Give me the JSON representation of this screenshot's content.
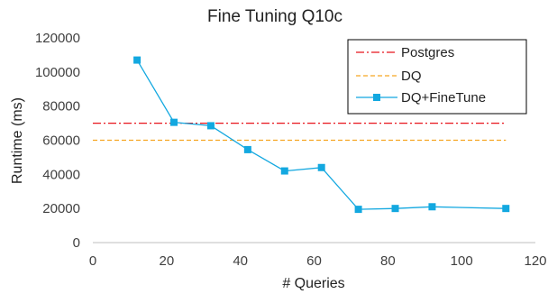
{
  "chart_data": {
    "type": "line",
    "title": "Fine Tuning Q10c",
    "xlabel": "# Queries",
    "ylabel": "Runtime (ms)",
    "xlim": [
      0,
      120
    ],
    "ylim": [
      0,
      120000
    ],
    "x_ticks": [
      "0",
      "20",
      "40",
      "60",
      "80",
      "100",
      "120"
    ],
    "y_ticks": [
      "0",
      "20000",
      "40000",
      "60000",
      "80000",
      "100000",
      "120000"
    ],
    "grid": false,
    "legend_position": "top-right",
    "series": [
      {
        "name": "Postgres",
        "style": "dash-dot",
        "color": "#e8141c",
        "x": [
          0,
          112
        ],
        "y": [
          70000,
          70000
        ]
      },
      {
        "name": "DQ",
        "style": "dashed",
        "color": "#f5a623",
        "x": [
          0,
          112
        ],
        "y": [
          60000,
          60000
        ]
      },
      {
        "name": "DQ+FineTune",
        "style": "solid-square-markers",
        "color": "#13a8e0",
        "x": [
          12,
          22,
          32,
          42,
          52,
          62,
          72,
          82,
          92,
          112
        ],
        "y": [
          107000,
          70500,
          68500,
          54500,
          42000,
          44000,
          19500,
          20000,
          21000,
          20000
        ]
      }
    ]
  }
}
